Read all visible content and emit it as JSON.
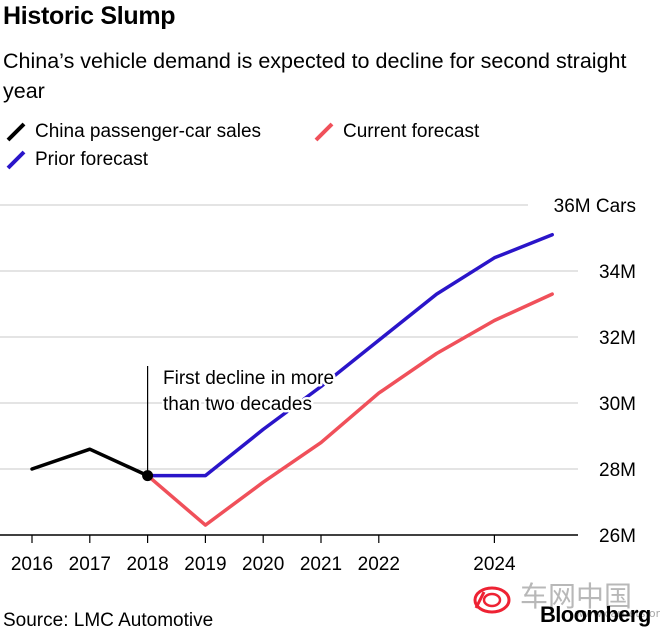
{
  "chart_data": {
    "type": "line",
    "title": "Historic Slump",
    "subtitle": "China’s vehicle demand is expected to decline for second straight year",
    "y_unit_label": "36M Cars",
    "ylim": [
      26,
      36
    ],
    "xlim": [
      2016,
      2025
    ],
    "y_ticks": [
      26,
      28,
      30,
      32,
      34,
      36
    ],
    "y_tick_labels": [
      "26M",
      "28M",
      "30M",
      "32M",
      "34M",
      "36M Cars"
    ],
    "x_ticks": [
      2016,
      2017,
      2018,
      2019,
      2020,
      2021,
      2022,
      2024
    ],
    "x_tick_labels": [
      "2016",
      "2017",
      "2018",
      "2019",
      "2020",
      "2021",
      "2022",
      "2024"
    ],
    "grid": "horizontal",
    "legend_placement": "top-left",
    "series": [
      {
        "name": "China passenger-car sales",
        "color": "#000000",
        "x": [
          2016,
          2017,
          2018
        ],
        "y": [
          28.0,
          28.6,
          27.8
        ]
      },
      {
        "name": "Current forecast",
        "color": "#f0505a",
        "x": [
          2018,
          2019,
          2020,
          2021,
          2022,
          2023,
          2024,
          2025
        ],
        "y": [
          27.8,
          26.3,
          27.6,
          28.8,
          30.3,
          31.5,
          32.5,
          33.3
        ]
      },
      {
        "name": "Prior forecast",
        "color": "#2a15c9",
        "x": [
          2018,
          2019,
          2020,
          2021,
          2022,
          2023,
          2024,
          2025
        ],
        "y": [
          27.8,
          27.8,
          29.2,
          30.5,
          31.9,
          33.3,
          34.4,
          35.1
        ]
      }
    ],
    "annotation": {
      "text_lines": [
        "First decline in more",
        "than two decades"
      ],
      "x": 2018,
      "y": 27.8
    }
  },
  "source": "Source: LMC Automotive",
  "brand": "Bloomberg",
  "watermark": {
    "text": "车网中国",
    "url": "www.carnets.org"
  }
}
